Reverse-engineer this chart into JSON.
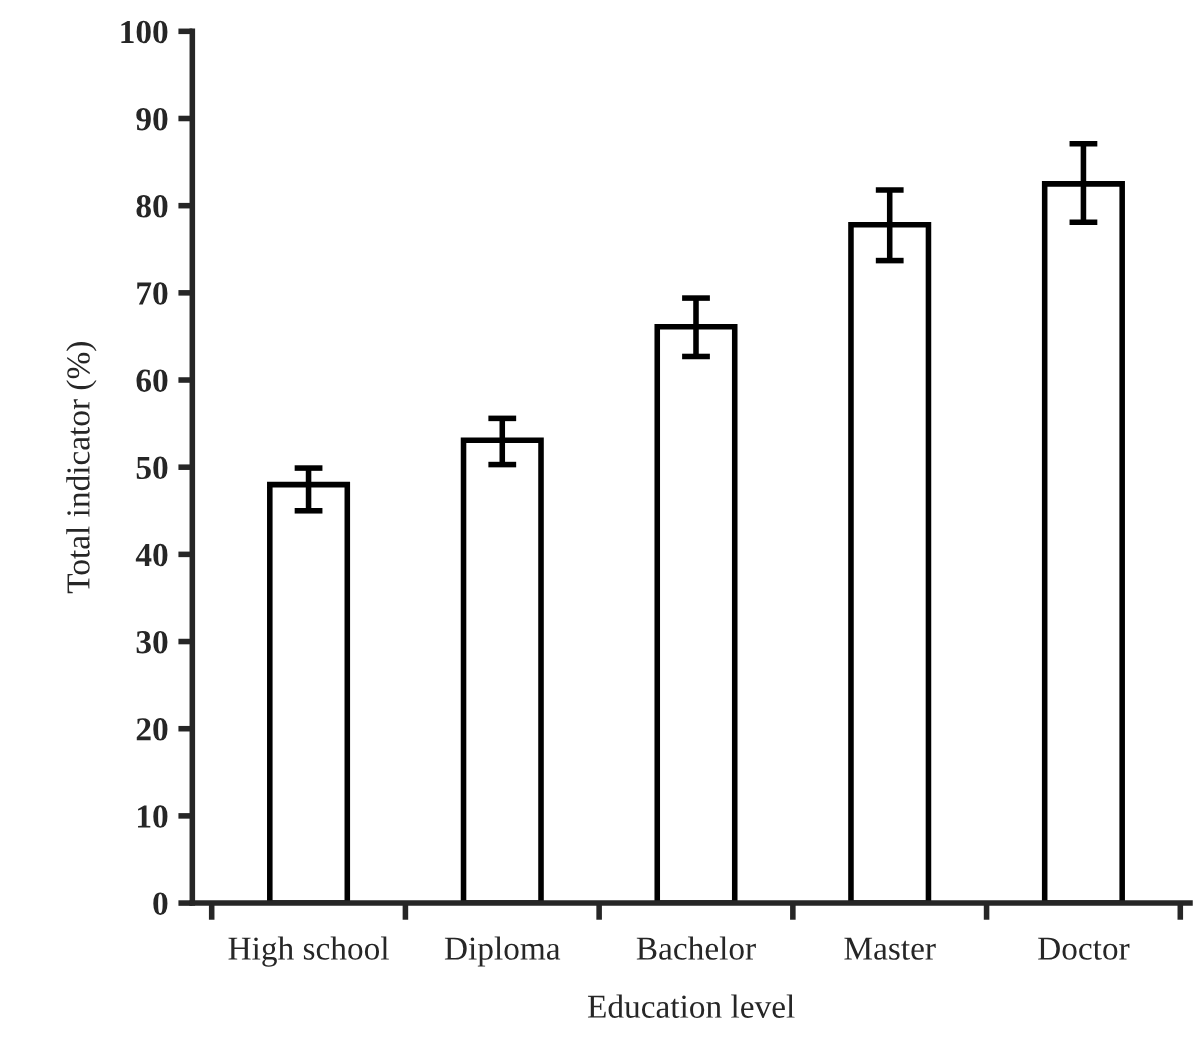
{
  "chart_data": {
    "type": "bar",
    "xlabel": "Education level",
    "ylabel": "Total indicator (%)",
    "categories": [
      "High school",
      "Diploma",
      "Bachelor",
      "Master",
      "Doctor"
    ],
    "values": [
      48.0,
      53.1,
      66.1,
      77.8,
      82.5
    ],
    "errors": [
      [
        45.0,
        49.9
      ],
      [
        50.3,
        55.6
      ],
      [
        62.7,
        69.4
      ],
      [
        73.7,
        81.8
      ],
      [
        78.1,
        87.1
      ]
    ],
    "color": "#ffffff",
    "ylim": [
      0,
      100
    ],
    "yticks": [
      0,
      10,
      20,
      30,
      40,
      50,
      60,
      70,
      80,
      90,
      100
    ],
    "grid": false,
    "legend": false
  }
}
